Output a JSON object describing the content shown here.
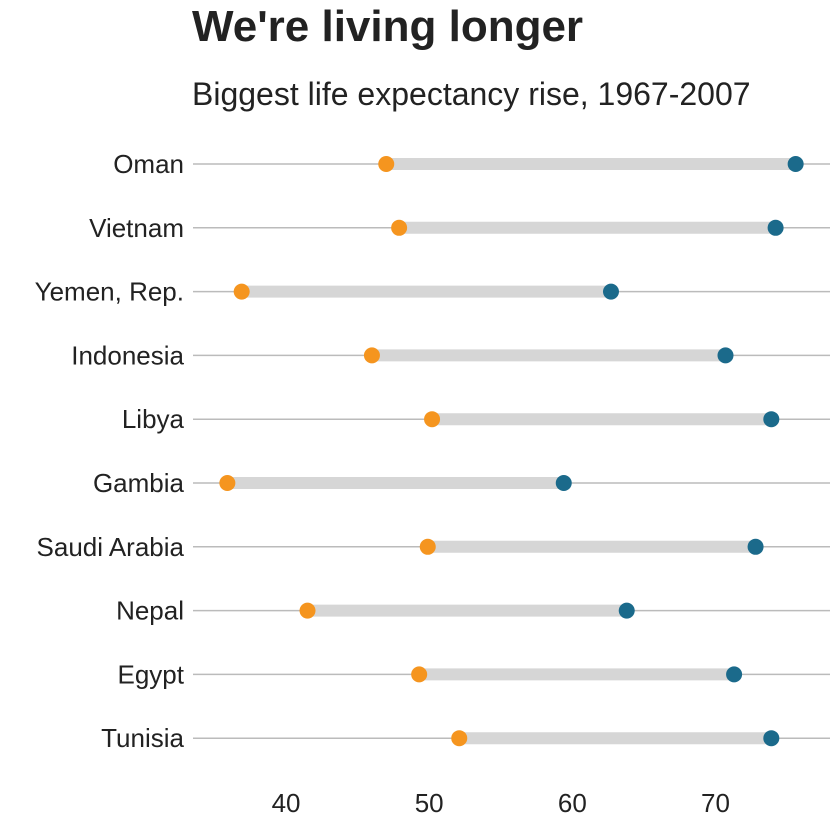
{
  "chart_data": {
    "type": "dumbbell",
    "title": "We're living longer",
    "subtitle": "Biggest life expectancy rise, 1967-2007",
    "xlabel": "",
    "ylabel": "",
    "xlim": [
      33.5,
      78
    ],
    "x_ticks": [
      40,
      50,
      60,
      70
    ],
    "grid": "horizontal",
    "colors": {
      "start": "#f5951f",
      "end": "#1b6a8b",
      "bar": "#d6d6d6",
      "grid": "#bbbbbb"
    },
    "categories": [
      "Oman",
      "Vietnam",
      "Yemen, Rep.",
      "Indonesia",
      "Libya",
      "Gambia",
      "Saudi Arabia",
      "Nepal",
      "Egypt",
      "Tunisia"
    ],
    "series": [
      {
        "values": [
          47.0,
          47.9,
          36.9,
          46.0,
          50.2,
          35.9,
          49.9,
          41.5,
          49.3,
          52.1
        ]
      },
      {
        "values": [
          75.6,
          74.2,
          62.7,
          70.7,
          73.9,
          59.4,
          72.8,
          63.8,
          71.3,
          73.9
        ]
      }
    ]
  }
}
